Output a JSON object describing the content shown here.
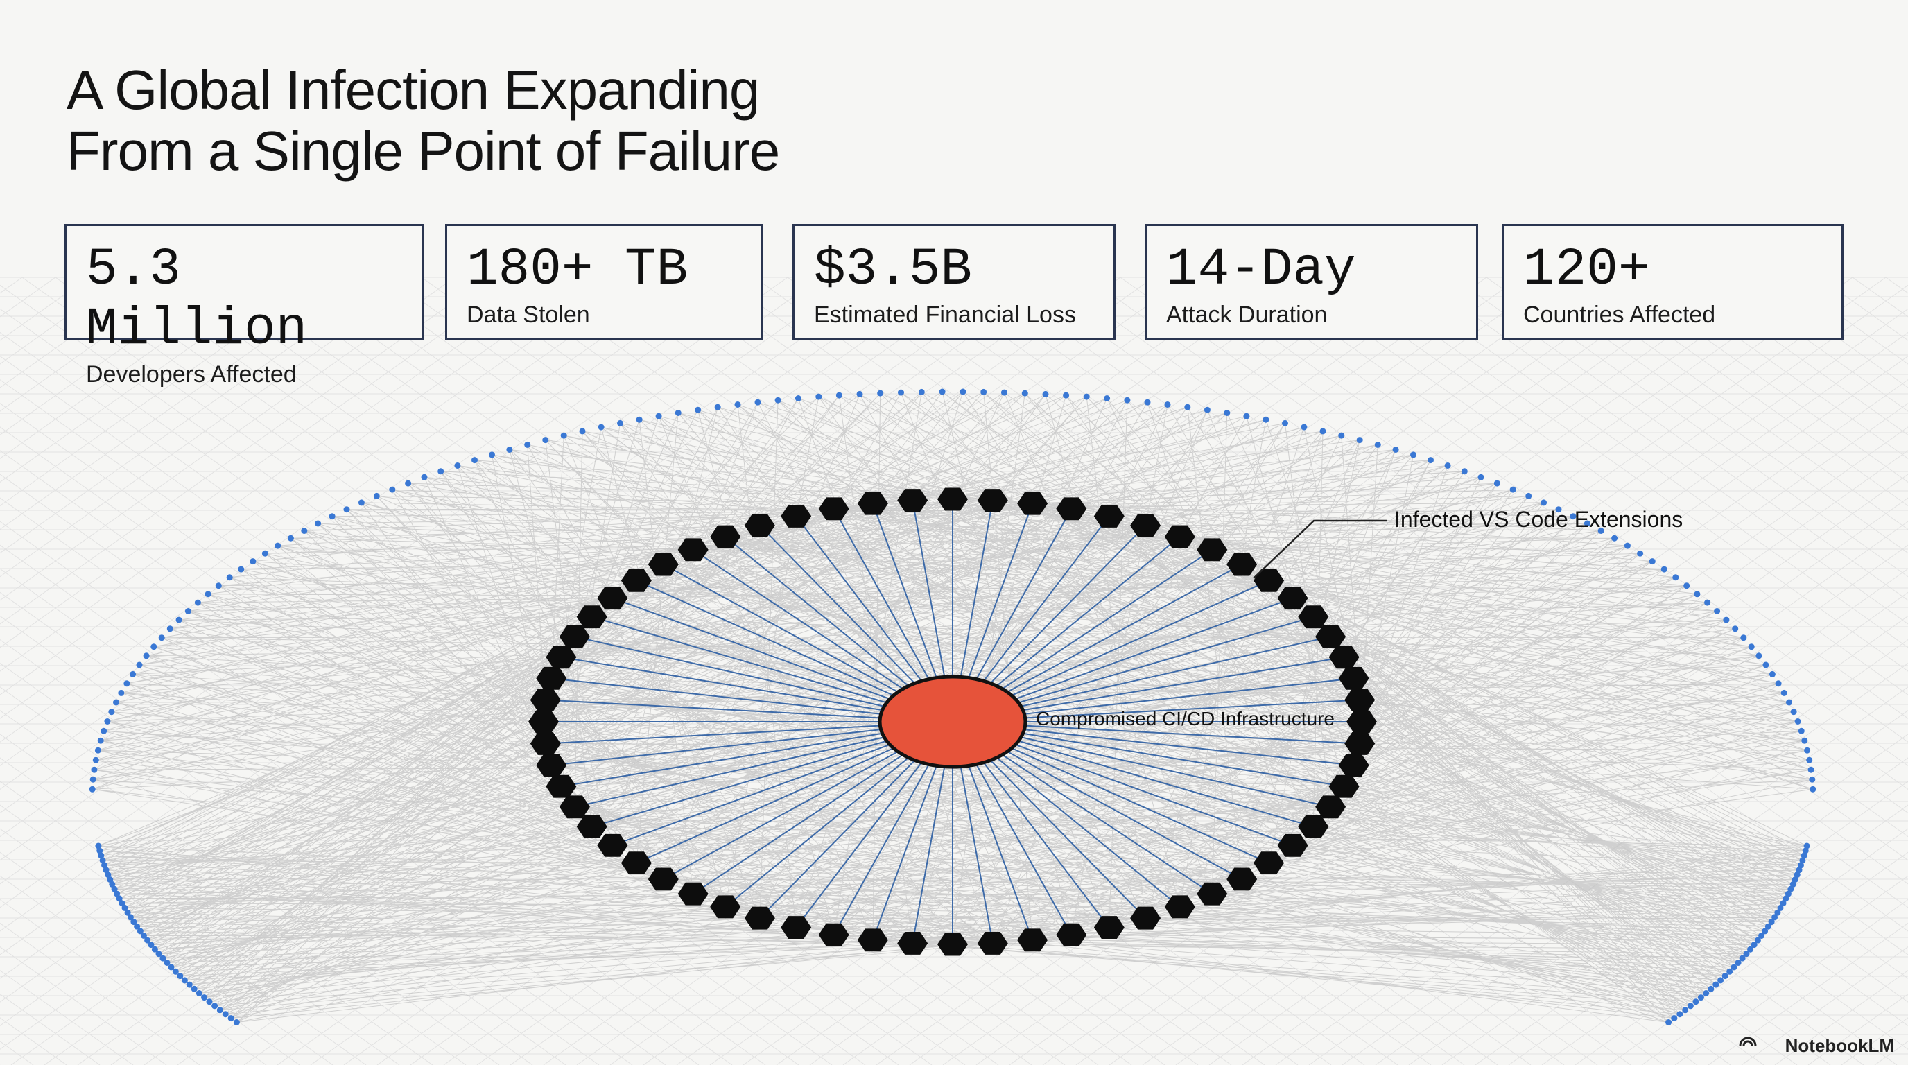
{
  "header": {
    "title_lines": [
      "A Global Infection Expanding",
      "From a Single Point of Failure"
    ]
  },
  "stats": [
    {
      "value": "5.3 Million",
      "label": "Developers Affected"
    },
    {
      "value": "180+ TB",
      "label": "Data Stolen"
    },
    {
      "value": "$3.5B",
      "label": "Estimated Financial Loss"
    },
    {
      "value": "14-Day",
      "label": "Attack Duration"
    },
    {
      "value": "120+",
      "label": "Countries Affected"
    }
  ],
  "diagram": {
    "ring_label": "Infected VS Code Extensions",
    "center_label": "Compromised CI/CD Infrastructure"
  },
  "footer": {
    "brand": "NotebookLM"
  }
}
